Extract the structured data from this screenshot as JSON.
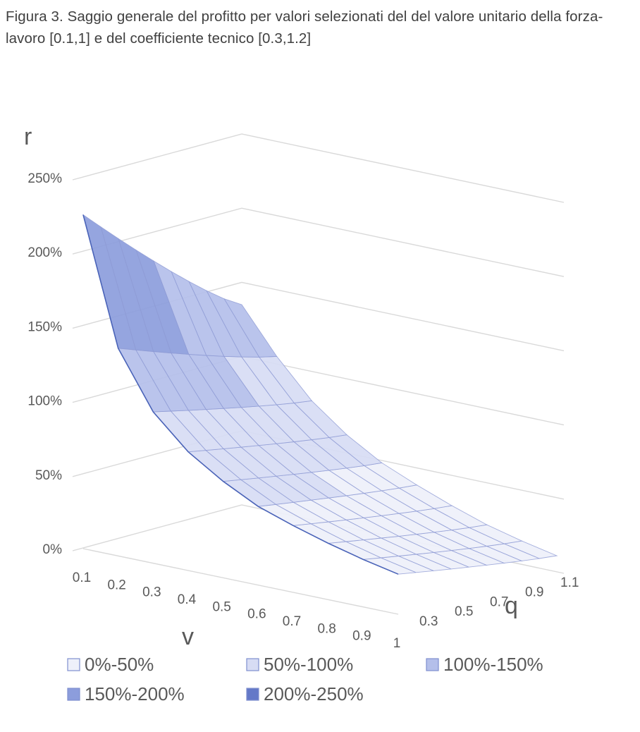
{
  "caption": "Figura 3. Saggio generale del profitto per valori selezionati del del valore unitario della forza-lavoro [0.1,1] e del coefficiente tecnico [0.3,1.2]",
  "chart_data": {
    "type": "surface",
    "z_label": "r",
    "x_label": "v",
    "y_label": "q",
    "z_ticks": [
      "0%",
      "50%",
      "100%",
      "150%",
      "200%",
      "250%"
    ],
    "z_range": [
      0,
      2.5
    ],
    "v_tick_labels": [
      "0.1",
      "0.2",
      "0.3",
      "0.4",
      "0.5",
      "0.6",
      "0.7",
      "0.8",
      "0.9",
      "1"
    ],
    "q_tick_labels": [
      "0.3",
      "0.5",
      "0.7",
      "0.9",
      "1.1"
    ],
    "v_values": [
      0.1,
      0.2,
      0.3,
      0.4,
      0.5,
      0.6,
      0.7,
      0.8,
      0.9,
      1.0
    ],
    "q_values": [
      0.3,
      0.4,
      0.5,
      0.6,
      0.7,
      0.8,
      0.9,
      1.0,
      1.1,
      1.2
    ],
    "r_front_edge_q03": [
      2.25,
      1.4,
      1.02,
      0.8,
      0.65,
      0.53,
      0.45,
      0.38,
      0.32,
      0.27
    ],
    "r_back_edge_q12": [
      1.35,
      1.05,
      0.8,
      0.62,
      0.48,
      0.38,
      0.29,
      0.21,
      0.15,
      0.1
    ],
    "grid": true,
    "legend_position": "bottom",
    "legend": [
      {
        "label": "0%-50%",
        "color": "#eef0fa"
      },
      {
        "label": "50%-100%",
        "color": "#d7dcf4"
      },
      {
        "label": "100%-150%",
        "color": "#b4bfea"
      },
      {
        "label": "150%-200%",
        "color": "#8c9ddc"
      },
      {
        "label": "200%-250%",
        "color": "#6479c8"
      }
    ],
    "band_colors": [
      "#eef0fa",
      "#d7dcf4",
      "#b4bfea",
      "#8c9ddc",
      "#6479c8"
    ],
    "edge_color": "#8e9bd4"
  }
}
